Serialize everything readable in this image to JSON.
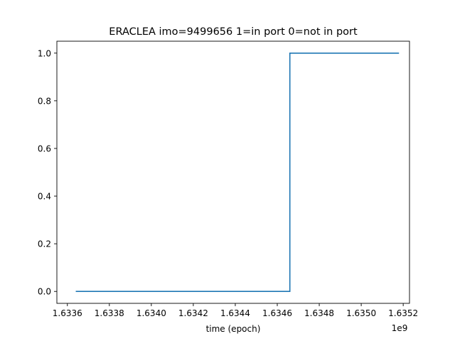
{
  "chart_data": {
    "type": "line",
    "title": "ERACLEA imo=9499656 1=in port 0=not in port",
    "xlabel": "time (epoch)",
    "ylabel": "",
    "x_offset_label": "1e9",
    "xlim": [
      1.63355,
      1.63523
    ],
    "ylim": [
      -0.05,
      1.05
    ],
    "x_ticks": [
      1.6336,
      1.6338,
      1.634,
      1.6342,
      1.6344,
      1.6346,
      1.6348,
      1.635,
      1.6352
    ],
    "x_tick_labels": [
      "1.6336",
      "1.6338",
      "1.6340",
      "1.6342",
      "1.6344",
      "1.6346",
      "1.6348",
      "1.6350",
      "1.6352"
    ],
    "y_ticks": [
      0.0,
      0.2,
      0.4,
      0.6,
      0.8,
      1.0
    ],
    "y_tick_labels": [
      "0.0",
      "0.2",
      "0.4",
      "0.6",
      "0.8",
      "1.0"
    ],
    "grid": false,
    "series": [
      {
        "color": "#1f77b4",
        "x": [
          1.63364,
          1.63466,
          1.63466,
          1.63518
        ],
        "y": [
          0,
          0,
          1,
          1
        ]
      }
    ]
  }
}
